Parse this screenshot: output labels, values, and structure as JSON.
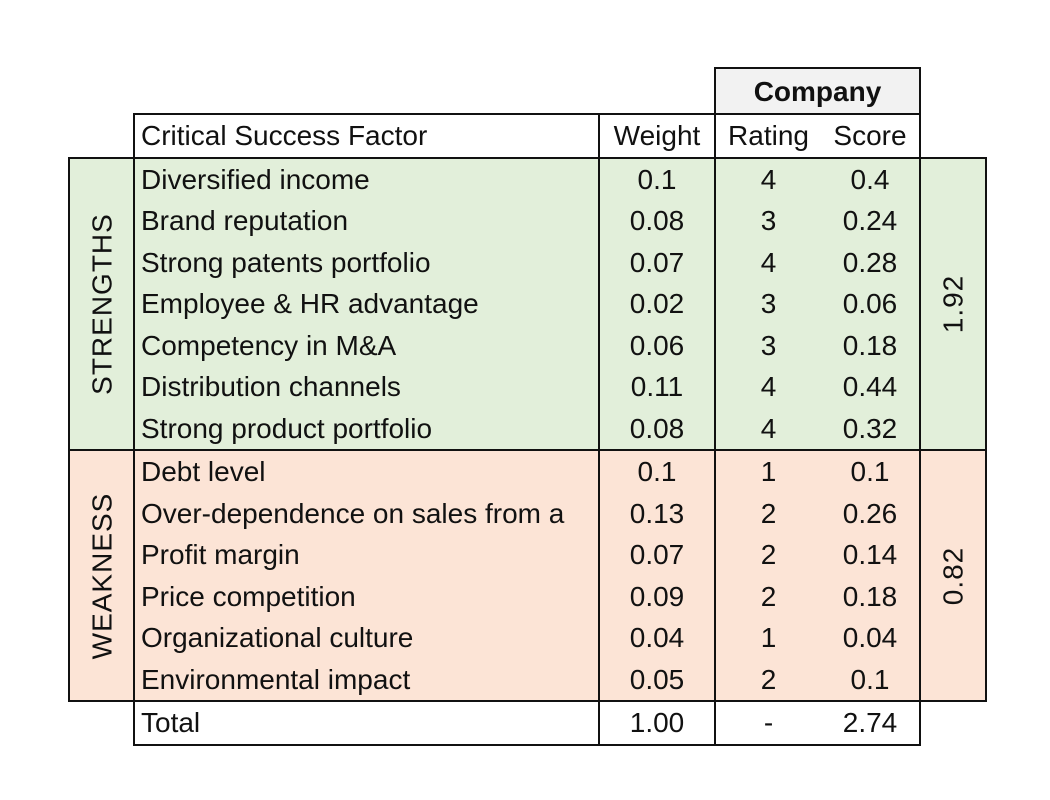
{
  "colors": {
    "strengths_bg": "#e2efda",
    "weakness_bg": "#fce4d6",
    "company_bg": "#f2f2f2"
  },
  "header": {
    "company": "Company",
    "factor": "Critical Success Factor",
    "weight": "Weight",
    "rating": "Rating",
    "score": "Score"
  },
  "groups": [
    {
      "label": "STRENGTHS",
      "subtotal": "1.92",
      "rows": [
        {
          "factor": "Diversified income",
          "weight": "0.1",
          "rating": "4",
          "score": "0.4"
        },
        {
          "factor": "Brand reputation",
          "weight": "0.08",
          "rating": "3",
          "score": "0.24"
        },
        {
          "factor": "Strong patents portfolio",
          "weight": "0.07",
          "rating": "4",
          "score": "0.28"
        },
        {
          "factor": "Employee & HR advantage",
          "weight": "0.02",
          "rating": "3",
          "score": "0.06"
        },
        {
          "factor": "Competency in M&A",
          "weight": "0.06",
          "rating": "3",
          "score": "0.18"
        },
        {
          "factor": "Distribution channels",
          "weight": "0.11",
          "rating": "4",
          "score": "0.44"
        },
        {
          "factor": "Strong product portfolio",
          "weight": "0.08",
          "rating": "4",
          "score": "0.32"
        }
      ]
    },
    {
      "label": "WEAKNESS",
      "subtotal": "0.82",
      "rows": [
        {
          "factor": "Debt level",
          "weight": "0.1",
          "rating": "1",
          "score": "0.1"
        },
        {
          "factor": "Over-dependence on sales from a",
          "weight": "0.13",
          "rating": "2",
          "score": "0.26"
        },
        {
          "factor": "Profit margin",
          "weight": "0.07",
          "rating": "2",
          "score": "0.14"
        },
        {
          "factor": "Price competition",
          "weight": "0.09",
          "rating": "2",
          "score": "0.18"
        },
        {
          "factor": "Organizational culture",
          "weight": "0.04",
          "rating": "1",
          "score": "0.04"
        },
        {
          "factor": "Environmental impact",
          "weight": "0.05",
          "rating": "2",
          "score": "0.1"
        }
      ]
    }
  ],
  "total": {
    "label": "Total",
    "weight": "1.00",
    "rating": "-",
    "score": "2.74"
  }
}
